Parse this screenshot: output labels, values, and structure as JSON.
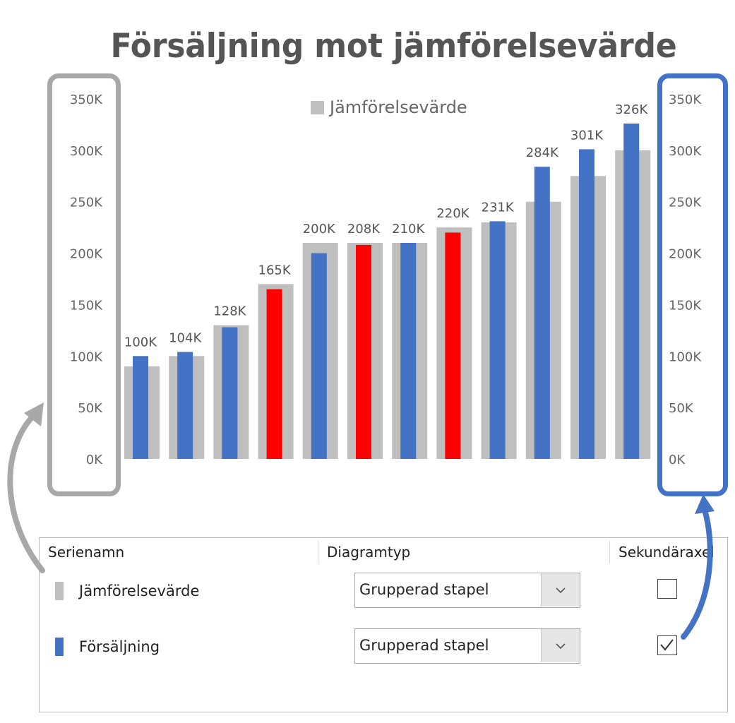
{
  "title": "Försäljning mot jämförelsevärde",
  "chart_data": {
    "type": "bar",
    "title": "Försäljning mot jämförelsevärde",
    "categories": [
      "",
      "",
      "",
      "",
      "",
      "",
      "",
      "",
      "",
      "",
      "",
      ""
    ],
    "series": [
      {
        "name": "Jämförelsevärde",
        "values": [
          90000,
          100000,
          130000,
          170000,
          210000,
          210000,
          210000,
          225000,
          230000,
          250000,
          275000,
          300000
        ]
      },
      {
        "name": "Försäljning",
        "values": [
          100000,
          104000,
          128000,
          165000,
          200000,
          208000,
          210000,
          220000,
          231000,
          284000,
          301000,
          326000
        ],
        "labels": [
          "100K",
          "104K",
          "128K",
          "165K",
          "200K",
          "208K",
          "210K",
          "220K",
          "231K",
          "284K",
          "301K",
          "326K"
        ]
      }
    ],
    "highlight": [
      false,
      false,
      false,
      true,
      false,
      true,
      false,
      true,
      false,
      false,
      false,
      false
    ],
    "colors": {
      "benchmark": "#bfbfbf",
      "sales": "#4472c4",
      "highlight": "#ff0000"
    },
    "ylim": [
      0,
      350000
    ],
    "y_ticks_left": [
      "0K",
      "50K",
      "100K",
      "150K",
      "200K",
      "250K",
      "300K",
      "350K"
    ],
    "y_ticks_right": [
      "0K",
      "50K",
      "100K",
      "150K",
      "200K",
      "250K",
      "300K",
      "350K"
    ],
    "legend": {
      "entries": [
        "Jämförelsevärde"
      ],
      "position": "top"
    },
    "grid": false
  },
  "panel": {
    "headers": {
      "name": "Serienamn",
      "type": "Diagramtyp",
      "secondary": "Sekundäraxel"
    },
    "rows": [
      {
        "name": "Jämförelsevärde",
        "color": "#bfbfbf",
        "type": "Grupperad stapel",
        "secondary": false
      },
      {
        "name": "Försäljning",
        "color": "#4472c4",
        "type": "Grupperad stapel",
        "secondary": true
      }
    ]
  }
}
